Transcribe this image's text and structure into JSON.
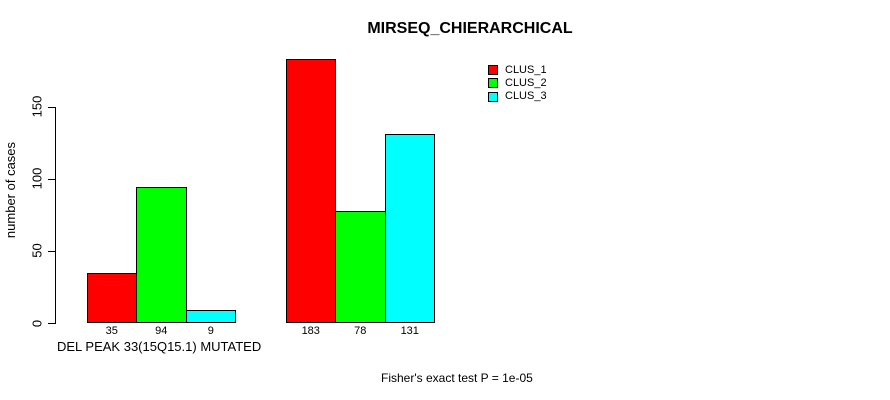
{
  "chart_data": {
    "type": "bar",
    "title": "MIRSEQ_CHIERARCHICAL",
    "ylabel": "number of cases",
    "xlabel": "DEL PEAK 33(15Q15.1) MUTATED",
    "footnote": "Fisher's exact test P = 1e-05",
    "yticks": [
      0,
      50,
      100,
      150
    ],
    "ylim": [
      0,
      190
    ],
    "grid": false,
    "legend_position": "top-right",
    "bar_border_color": "#000000",
    "background_color": "#ffffff",
    "series": [
      {
        "name": "CLUS_1",
        "color": "#ff0000",
        "values": [
          35,
          183
        ]
      },
      {
        "name": "CLUS_2",
        "color": "#00ff00",
        "values": [
          94,
          78
        ]
      },
      {
        "name": "CLUS_3",
        "color": "#00ffff",
        "values": [
          9,
          131
        ]
      }
    ]
  }
}
